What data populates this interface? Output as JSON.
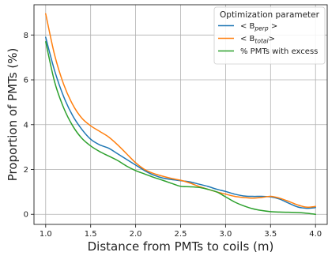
{
  "chart_data": {
    "type": "line",
    "xlabel": "Distance from PMTs to coils (m)",
    "ylabel": "Proportion of PMTs (%)",
    "xlim": [
      0.87,
      4.13
    ],
    "ylim": [
      -0.45,
      9.35
    ],
    "xticks": [
      1.0,
      1.5,
      2.0,
      2.5,
      3.0,
      3.5,
      4.0
    ],
    "xtick_labels": [
      "1.0",
      "1.5",
      "2.0",
      "2.5",
      "3.0",
      "3.5",
      "4.0"
    ],
    "yticks": [
      0,
      2,
      4,
      6,
      8
    ],
    "ytick_labels": [
      "0",
      "2",
      "4",
      "6",
      "8"
    ],
    "grid": true,
    "legend": {
      "placement": "top-right",
      "title": "Optimization parameter"
    },
    "series": [
      {
        "name": "< B_perp >",
        "label_main": "< B",
        "label_sub": "perp",
        "label_end": " >",
        "color": "#1f77b4",
        "x": [
          1.0,
          1.1,
          1.2,
          1.3,
          1.4,
          1.5,
          1.6,
          1.7,
          1.8,
          1.9,
          2.0,
          2.1,
          2.2,
          2.3,
          2.4,
          2.5,
          2.6,
          2.7,
          2.8,
          2.9,
          3.0,
          3.1,
          3.2,
          3.3,
          3.4,
          3.5,
          3.6,
          3.7,
          3.8,
          3.9,
          4.0
        ],
        "y": [
          7.9,
          6.4,
          5.25,
          4.4,
          3.8,
          3.35,
          3.1,
          2.95,
          2.7,
          2.45,
          2.2,
          1.95,
          1.75,
          1.62,
          1.55,
          1.5,
          1.45,
          1.35,
          1.25,
          1.12,
          1.02,
          0.9,
          0.82,
          0.8,
          0.8,
          0.78,
          0.68,
          0.5,
          0.33,
          0.27,
          0.3
        ]
      },
      {
        "name": "< B_total >",
        "label_main": "< B",
        "label_sub": "total",
        "label_end": ">",
        "color": "#ff7f0e",
        "x": [
          1.0,
          1.1,
          1.2,
          1.3,
          1.4,
          1.5,
          1.6,
          1.7,
          1.8,
          1.9,
          2.0,
          2.1,
          2.2,
          2.3,
          2.4,
          2.5,
          2.6,
          2.7,
          2.8,
          2.9,
          3.0,
          3.1,
          3.2,
          3.3,
          3.4,
          3.5,
          3.6,
          3.7,
          3.8,
          3.9,
          4.0
        ],
        "y": [
          8.95,
          7.1,
          5.8,
          4.9,
          4.3,
          3.95,
          3.7,
          3.45,
          3.1,
          2.7,
          2.3,
          2.0,
          1.82,
          1.7,
          1.6,
          1.52,
          1.4,
          1.25,
          1.12,
          1.0,
          0.9,
          0.8,
          0.75,
          0.72,
          0.75,
          0.8,
          0.72,
          0.58,
          0.42,
          0.32,
          0.35
        ]
      },
      {
        "name": "% PMTs with excess",
        "color": "#2ca02c",
        "x": [
          1.0,
          1.1,
          1.2,
          1.3,
          1.4,
          1.5,
          1.6,
          1.7,
          1.8,
          1.9,
          2.0,
          2.1,
          2.2,
          2.3,
          2.4,
          2.5,
          2.6,
          2.7,
          2.8,
          2.9,
          3.0,
          3.1,
          3.2,
          3.3,
          3.4,
          3.5,
          3.6,
          3.7,
          3.8,
          3.9,
          4.0
        ],
        "y": [
          7.7,
          5.9,
          4.75,
          3.95,
          3.4,
          3.05,
          2.8,
          2.6,
          2.4,
          2.15,
          1.95,
          1.8,
          1.65,
          1.52,
          1.38,
          1.25,
          1.23,
          1.2,
          1.12,
          1.0,
          0.78,
          0.55,
          0.38,
          0.25,
          0.17,
          0.12,
          0.1,
          0.09,
          0.08,
          0.05,
          0.0
        ]
      }
    ]
  }
}
